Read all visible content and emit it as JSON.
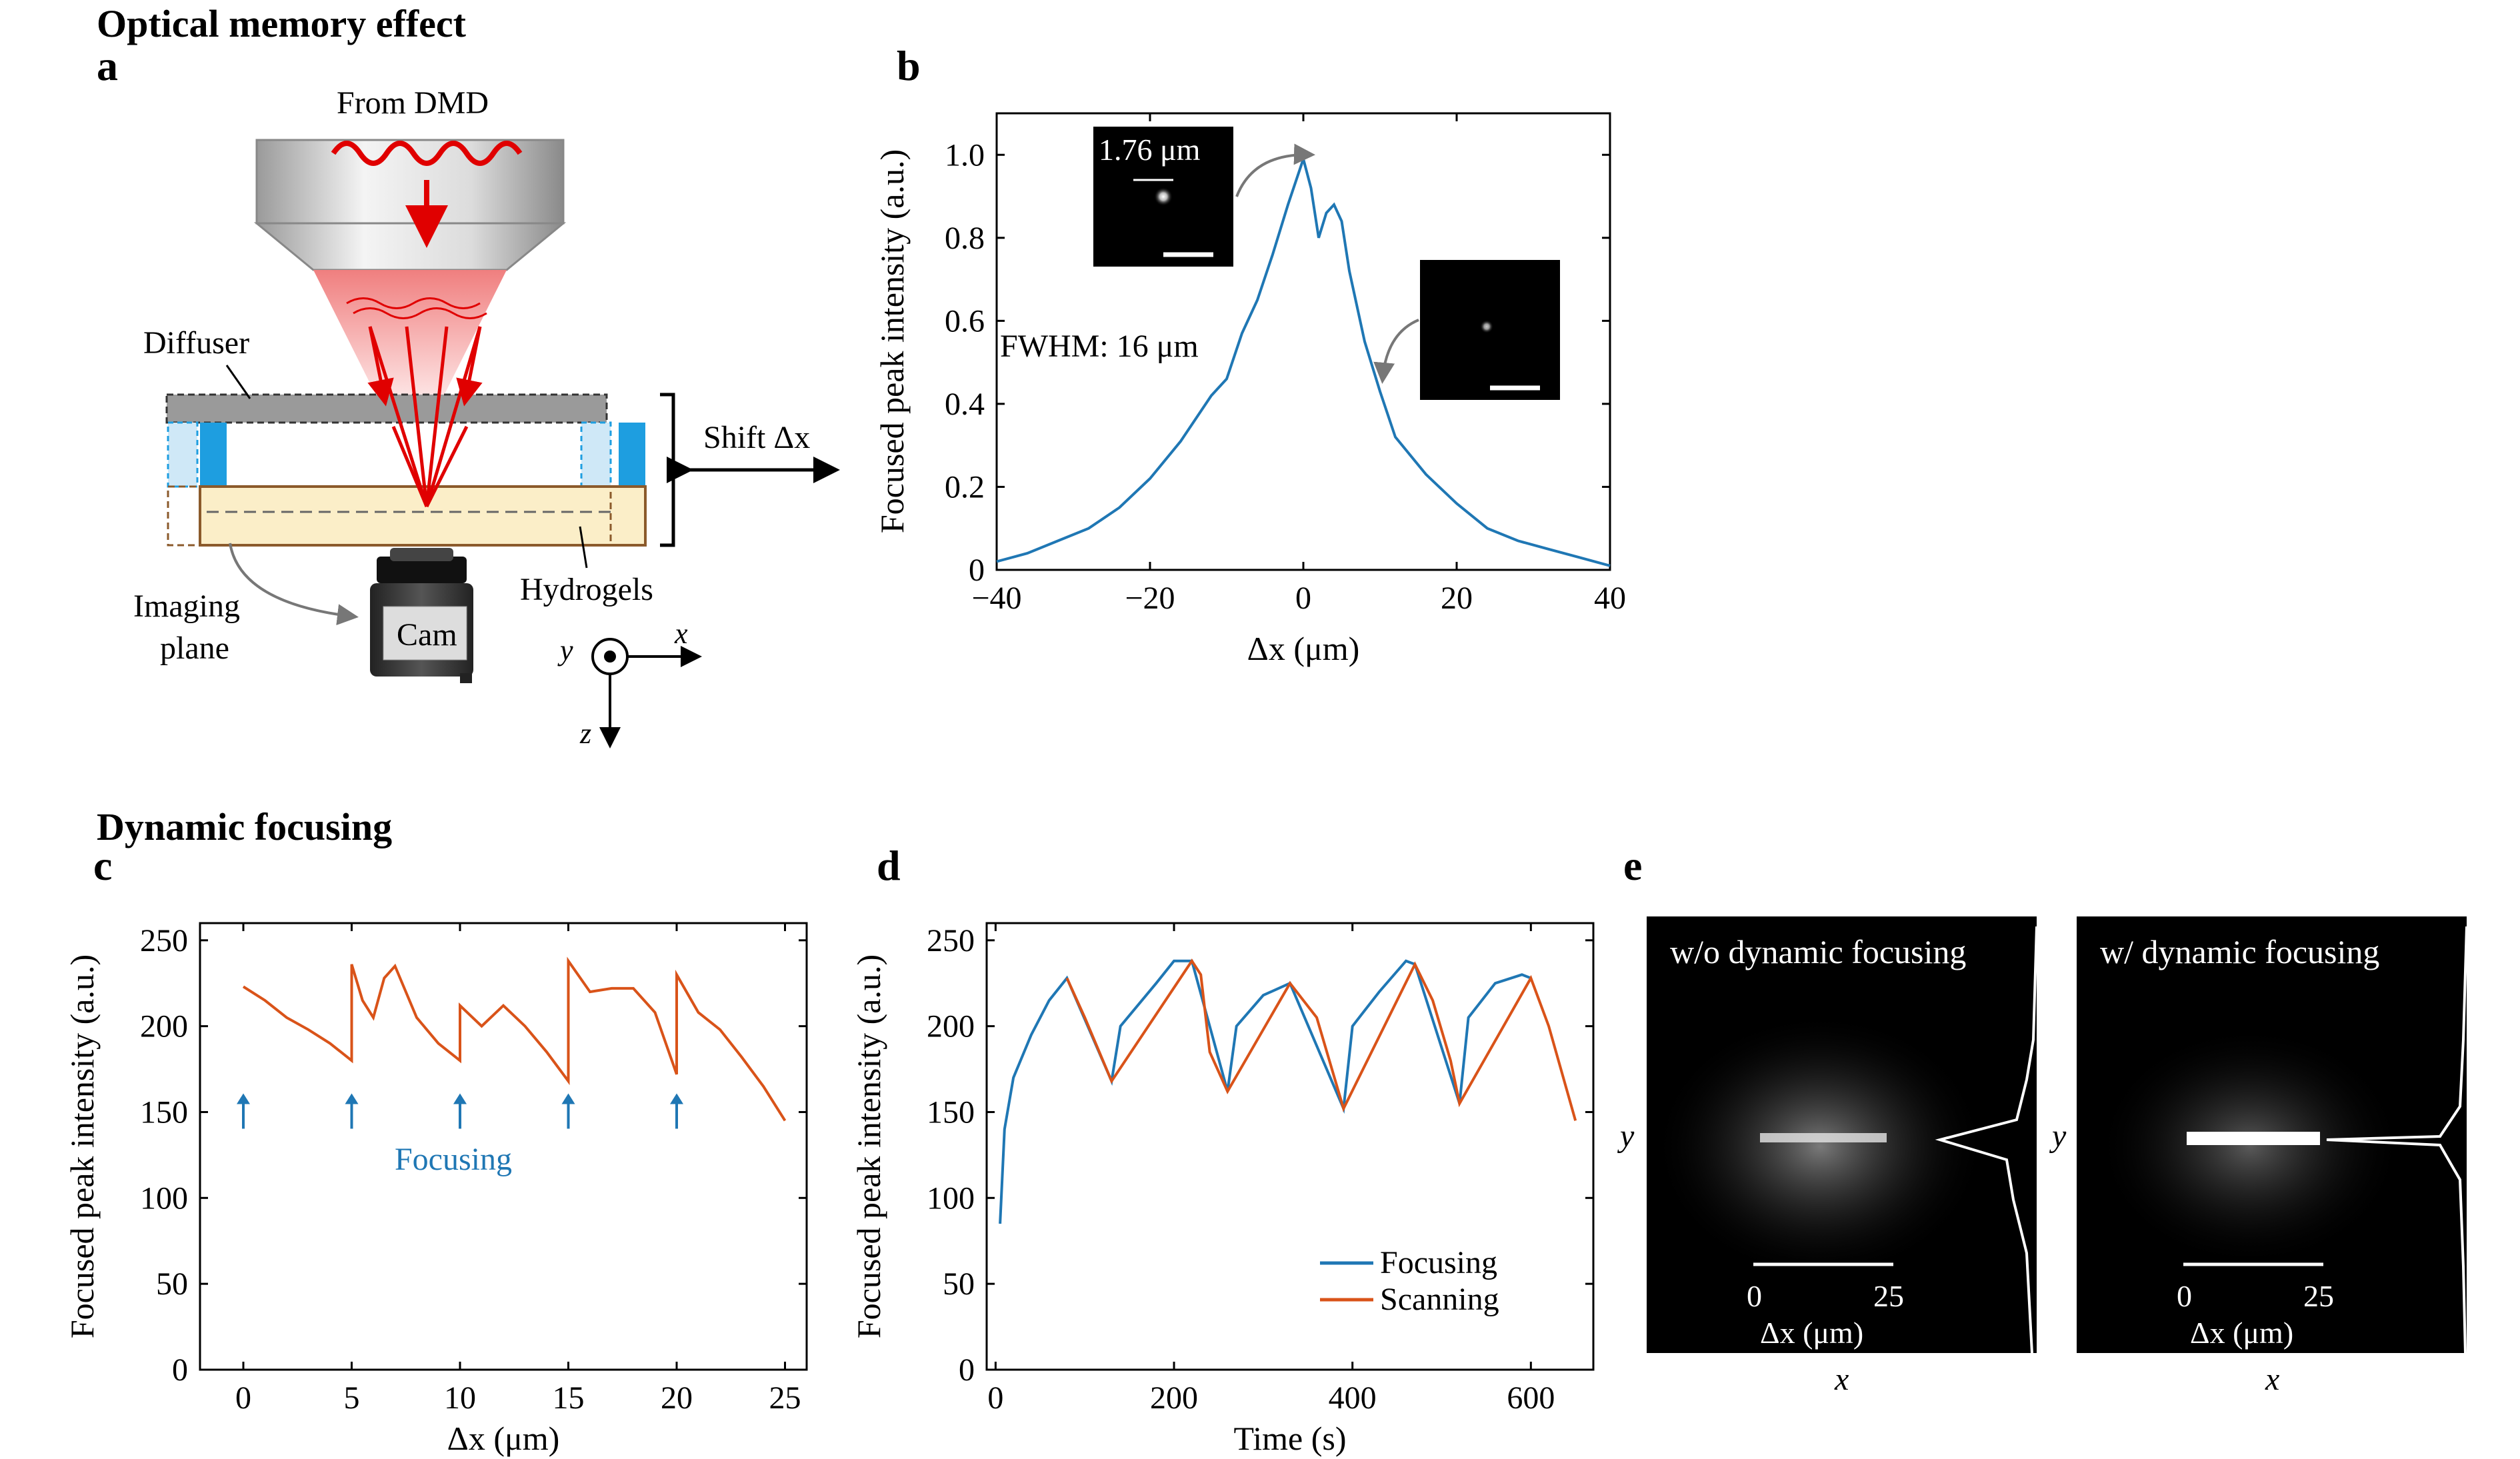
{
  "headings": {
    "section1": "Optical memory effect",
    "section2": "Dynamic focusing"
  },
  "panel_labels": {
    "a": "a",
    "b": "b",
    "c": "c",
    "d": "d",
    "e": "e"
  },
  "diagram": {
    "from_dmd": "From DMD",
    "diffuser": "Diffuser",
    "shift": "Shift Δx",
    "imaging_plane_1": "Imaging",
    "imaging_plane_2": "plane",
    "hydrogels": "Hydrogels",
    "cam": "Cam",
    "axis_x": "x",
    "axis_y": "y",
    "axis_z": "z"
  },
  "chart_data": [
    {
      "panel": "b",
      "type": "line",
      "xlabel": "Δx (μm)",
      "ylabel": "Focused peak intensity (a.u.)",
      "xlim": [
        -40,
        40
      ],
      "ylim": [
        0,
        1.1
      ],
      "xticks": [
        "−40",
        "−20",
        "0",
        "20",
        "40"
      ],
      "yticks": [
        "0",
        "0.2",
        "0.4",
        "0.6",
        "0.8",
        "1.0"
      ],
      "color": "#1f77b4",
      "x": [
        -40,
        -36,
        -32,
        -28,
        -24,
        -20,
        -16,
        -12,
        -10,
        -8,
        -6,
        -4,
        -2,
        0,
        1,
        2,
        3,
        4,
        5,
        6,
        8,
        10,
        12,
        16,
        20,
        24,
        28,
        32,
        36,
        40
      ],
      "y": [
        0.02,
        0.04,
        0.07,
        0.1,
        0.15,
        0.22,
        0.31,
        0.42,
        0.46,
        0.57,
        0.65,
        0.76,
        0.88,
        0.99,
        0.92,
        0.8,
        0.86,
        0.88,
        0.84,
        0.72,
        0.55,
        0.43,
        0.32,
        0.23,
        0.16,
        0.1,
        0.07,
        0.05,
        0.03,
        0.01
      ],
      "annotations": {
        "fwhm": "FWHM: 16 μm",
        "spot_size": "1.76 μm"
      }
    },
    {
      "panel": "c",
      "type": "line",
      "xlabel": "Δx (μm)",
      "ylabel": "Focused peak intensity (a.u.)",
      "xlim": [
        -2,
        26
      ],
      "ylim": [
        0,
        260
      ],
      "xticks": [
        "0",
        "5",
        "10",
        "15",
        "20",
        "25"
      ],
      "yticks": [
        "0",
        "50",
        "100",
        "150",
        "200",
        "250"
      ],
      "color": "#d95319",
      "x": [
        0,
        1,
        2,
        3,
        4,
        5,
        5,
        5.5,
        6,
        6.5,
        7,
        8,
        9,
        10,
        10,
        11,
        12,
        13,
        14,
        15,
        15,
        16,
        17,
        18,
        19,
        20,
        20,
        21,
        22,
        23,
        24,
        25
      ],
      "y": [
        223,
        215,
        205,
        198,
        190,
        180,
        236,
        215,
        205,
        228,
        235,
        205,
        190,
        180,
        212,
        200,
        212,
        200,
        185,
        168,
        238,
        220,
        222,
        222,
        208,
        172,
        230,
        208,
        198,
        182,
        165,
        145
      ],
      "arrow_positions": [
        0,
        5,
        10,
        15,
        20
      ],
      "arrow_value": 150,
      "annotation": "Focusing"
    },
    {
      "panel": "d",
      "type": "line",
      "xlabel": "Time (s)",
      "ylabel": "Focused peak intensity (a.u.)",
      "xlim": [
        -10,
        670
      ],
      "ylim": [
        0,
        260
      ],
      "xticks": [
        "0",
        "200",
        "400",
        "600"
      ],
      "yticks": [
        "0",
        "50",
        "100",
        "150",
        "200",
        "250"
      ],
      "legend_position": "bottom-right",
      "series": [
        {
          "name": "Focusing",
          "color": "#1f77b4",
          "x": [
            5,
            10,
            20,
            40,
            60,
            80,
            130,
            140,
            180,
            200,
            220,
            260,
            270,
            300,
            330,
            390,
            400,
            430,
            460,
            470,
            520,
            530,
            560,
            590,
            600
          ],
          "y": [
            85,
            140,
            170,
            195,
            215,
            228,
            168,
            200,
            225,
            238,
            238,
            162,
            200,
            218,
            225,
            152,
            200,
            220,
            238,
            236,
            155,
            205,
            225,
            230,
            228
          ]
        },
        {
          "name": "Scanning",
          "color": "#d95319",
          "x": [
            80,
            100,
            130,
            220,
            230,
            240,
            260,
            330,
            360,
            390,
            470,
            490,
            510,
            520,
            600,
            620,
            650
          ],
          "y": [
            228,
            205,
            168,
            238,
            230,
            185,
            162,
            225,
            205,
            152,
            236,
            215,
            180,
            155,
            228,
            200,
            145
          ]
        }
      ]
    },
    {
      "panel": "e",
      "type": "heatmap",
      "images": [
        {
          "title": "w/o dynamic focusing",
          "xlabel": "x",
          "ylabel": "y",
          "scalebar_label": "Δx (μm)",
          "scalebar_ticks": [
            "0",
            "25"
          ]
        },
        {
          "title": "w/ dynamic focusing",
          "xlabel": "x",
          "ylabel": "y",
          "scalebar_label": "Δx (μm)",
          "scalebar_ticks": [
            "0",
            "25"
          ]
        }
      ]
    }
  ]
}
